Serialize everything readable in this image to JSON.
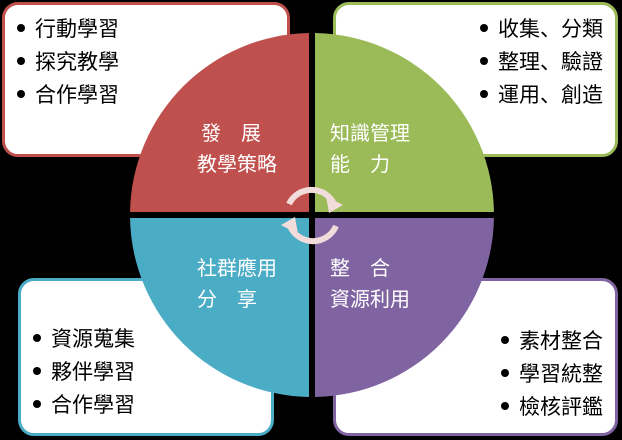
{
  "colors": {
    "red": "#c0504d",
    "green": "#9bbb59",
    "blue": "#4bacc6",
    "purple": "#8064a2",
    "background": "#000000"
  },
  "quadrants": {
    "top_left": {
      "line1": "發　展",
      "line2": "教學策略"
    },
    "top_right": {
      "line1": "知識管理",
      "line2": "能　力"
    },
    "bottom_left": {
      "line1": "社群應用",
      "line2": "分　享"
    },
    "bottom_right": {
      "line1": "整　合",
      "line2": "資源利用"
    }
  },
  "cards": {
    "top_left": [
      "行動學習",
      "探究教學",
      "合作學習"
    ],
    "top_right": [
      "收集、分類",
      "整理、驗證",
      "運用、創造"
    ],
    "bottom_left": [
      "資源蒐集",
      "夥伴學習",
      "合作學習"
    ],
    "bottom_right": [
      "素材整合",
      "學習統整",
      "檢核評鑑"
    ]
  },
  "center_icon": "cycle-arrows-icon"
}
